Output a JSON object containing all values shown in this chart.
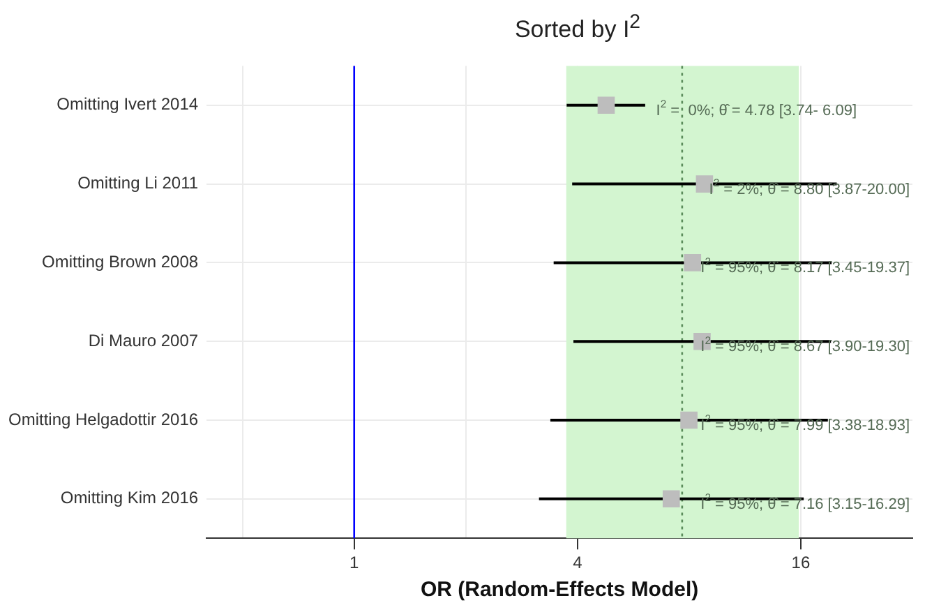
{
  "chart_data": {
    "type": "scatter",
    "orientation": "horizontal",
    "title": "Sorted by I$^{2}$",
    "xlabel": "OR (Random-Effects Model)",
    "categories": [
      "Omitting Ivert 2014",
      "Omitting Li 2011",
      "Omitting Brown 2008",
      "Di Mauro 2007",
      "Omitting Helgadottir 2016",
      "Omitting Kim 2016"
    ],
    "values": [
      4.78,
      8.8,
      8.17,
      8.67,
      7.99,
      7.16
    ],
    "errors": [
      [
        3.74,
        6.09
      ],
      [
        3.87,
        20.0
      ],
      [
        3.45,
        19.37
      ],
      [
        3.9,
        19.3
      ],
      [
        3.38,
        18.93
      ],
      [
        3.15,
        16.29
      ]
    ],
    "value_labels": [
      "I$^{2}$ =  0%; θ̂ = 4.78 [3.74- 6.09]",
      "I$^{2}$ = 2%; θ̂ = 8.80 [3.87-20.00]",
      "I$^{2}$ = 95%; θ̂ = 8.17 [3.45-19.37]",
      "I$^{2}$ = 95%; θ̂ = 8.67 [3.90-19.30]",
      "I$^{2}$ = 95%; θ̂ = 7.99 [3.38-18.93]",
      "I$^{2}$ = 95%; θ̂ = 7.16 [3.15-16.29]"
    ],
    "color": "#bdbdbd",
    "marker": "square",
    "log": "x",
    "xlim": [
      0.4,
      32
    ],
    "xticks": [
      {
        "value": 0.5,
        "label": null
      },
      1,
      {
        "value": 2,
        "label": null
      },
      4,
      16
    ],
    "grid": true,
    "ref_lines": [
      {
        "axis": "x",
        "value": 1,
        "color": "#0000ff"
      },
      {
        "axis": "x",
        "value": 7.66,
        "color": "#5b8c5b",
        "line_style": "dotted"
      }
    ],
    "bands": [
      {
        "axis": "x",
        "from": 3.73,
        "to": 15.8,
        "color": "#d3f5d0"
      }
    ]
  }
}
